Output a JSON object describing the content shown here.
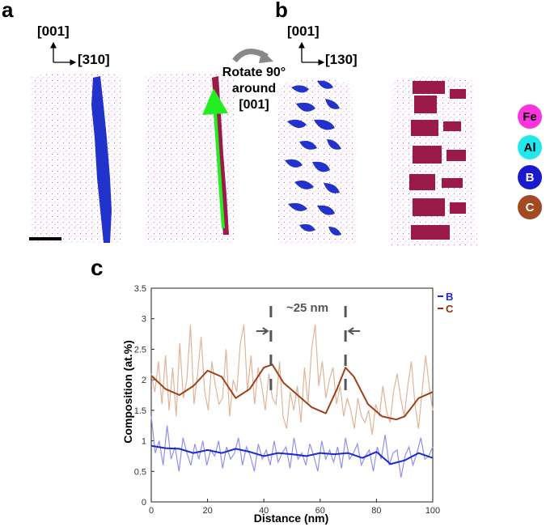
{
  "figure": {
    "panel_a": {
      "letter": "a",
      "axis_up": "[001]",
      "axis_right": "[310]"
    },
    "panel_b": {
      "letter": "b",
      "axis_up": "[001]",
      "axis_right": "[130]"
    },
    "panel_c": {
      "letter": "c"
    },
    "rotation_annotation": [
      "Rotate 90°",
      "around",
      "[001]"
    ],
    "element_legend": [
      {
        "label": "Fe",
        "color": "#ff33dd"
      },
      {
        "label": "Al",
        "color": "#22e8ee"
      },
      {
        "label": "B",
        "color": "#1a1acc"
      },
      {
        "label": "C",
        "color": "#a44a22"
      }
    ],
    "colors": {
      "boron": "#2233cc",
      "carbon": "#9a1a4a",
      "fe_dots": "#cc44cc",
      "arrow": "#22ee22"
    }
  },
  "chart_data": {
    "type": "line",
    "xlabel": "Distance (nm)",
    "ylabel": "Composition (at.%)",
    "xlim": [
      0,
      100
    ],
    "ylim": [
      0,
      3.5
    ],
    "x_ticks": [
      "0",
      "20",
      "40",
      "60",
      "80",
      "100"
    ],
    "y_ticks": [
      "0",
      "0.5",
      "1",
      "1.5",
      "2",
      "2.5",
      "3",
      "3.5"
    ],
    "annotation": "~25 nm",
    "annotation_marks_x": [
      42.5,
      69
    ],
    "legend": [
      {
        "name": "B",
        "color": "#2222ee"
      },
      {
        "name": "C",
        "color": "#9a2a10"
      }
    ],
    "series": [
      {
        "name": "C",
        "smooth_color": "#a04018",
        "raw_color": "#e0b49a",
        "x": [
          0,
          5,
          10,
          15,
          20,
          25,
          30,
          35,
          40,
          43,
          47,
          52,
          57,
          62,
          66,
          69,
          72,
          77,
          82,
          87,
          90,
          95,
          100
        ],
        "smooth": [
          2.07,
          1.85,
          1.75,
          1.9,
          2.15,
          2.05,
          1.7,
          1.85,
          2.2,
          2.25,
          1.95,
          1.75,
          1.55,
          1.45,
          1.85,
          2.2,
          2.05,
          1.6,
          1.4,
          1.35,
          1.4,
          1.7,
          1.8
        ],
        "raw": [
          2.1,
          1.8,
          2.3,
          1.6,
          2.4,
          1.5,
          2.2,
          1.4,
          2.6,
          1.7,
          2.0,
          2.9,
          1.6,
          2.1,
          2.7,
          1.8,
          1.5,
          2.3,
          1.9,
          1.6,
          1.7,
          2.5,
          1.4,
          2.0,
          1.8,
          2.6,
          2.9,
          1.8,
          2.4,
          1.6,
          2.2,
          1.9,
          1.5,
          2.1,
          1.7,
          1.6,
          2.3,
          1.4,
          1.2,
          1.8,
          1.5,
          1.9,
          1.3,
          2.2,
          1.6,
          2.5,
          2.9,
          1.9,
          2.3,
          1.7,
          2.0,
          2.2,
          1.6,
          1.9,
          1.4,
          1.7,
          1.5,
          1.2,
          1.7,
          1.4,
          1.3,
          1.5,
          1.1,
          1.6,
          1.4,
          1.9,
          1.5,
          1.3,
          1.8,
          2.1,
          1.7,
          1.4,
          1.9,
          2.3,
          1.6,
          1.2,
          1.8,
          2.4,
          1.9,
          1.5
        ]
      },
      {
        "name": "B",
        "smooth_color": "#1a2ad0",
        "raw_color": "#9090f0",
        "x": [
          0,
          5,
          10,
          15,
          20,
          25,
          30,
          35,
          40,
          45,
          50,
          55,
          60,
          65,
          70,
          75,
          80,
          85,
          90,
          95,
          100
        ],
        "smooth": [
          0.92,
          0.88,
          0.87,
          0.8,
          0.85,
          0.8,
          0.87,
          0.82,
          0.75,
          0.8,
          0.78,
          0.75,
          0.8,
          0.78,
          0.8,
          0.72,
          0.82,
          0.62,
          0.68,
          0.8,
          0.72
        ],
        "raw": [
          1.4,
          0.8,
          1.0,
          0.6,
          1.25,
          0.7,
          0.9,
          0.5,
          1.05,
          0.8,
          0.6,
          0.95,
          0.7,
          1.0,
          0.6,
          0.85,
          0.75,
          1.0,
          0.55,
          0.9,
          0.7,
          0.8,
          1.05,
          0.6,
          0.9,
          0.75,
          0.5,
          0.95,
          0.7,
          0.85,
          0.6,
          1.0,
          0.65,
          0.8,
          0.9,
          0.55,
          1.05,
          0.7,
          0.8,
          0.6,
          0.95,
          0.75,
          0.5,
          1.0,
          0.7,
          0.85,
          0.65,
          0.9,
          0.55,
          1.05,
          0.7,
          0.8,
          0.95,
          0.6,
          0.75,
          0.85,
          0.5,
          0.9,
          0.7,
          1.1,
          0.6,
          0.8,
          0.85,
          0.4,
          0.75,
          0.9,
          0.6,
          0.8,
          1.05,
          0.7,
          0.75,
          0.9
        ]
      }
    ]
  }
}
